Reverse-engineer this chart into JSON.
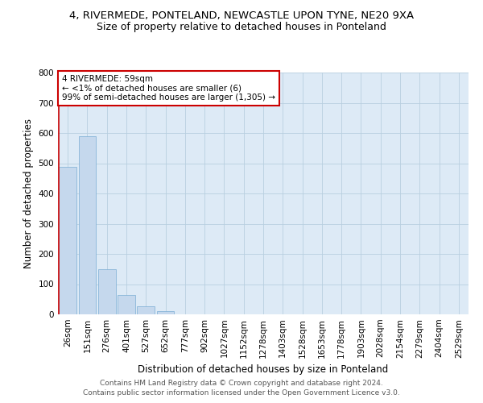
{
  "title": "4, RIVERMEDE, PONTELAND, NEWCASTLE UPON TYNE, NE20 9XA",
  "subtitle": "Size of property relative to detached houses in Ponteland",
  "xlabel": "Distribution of detached houses by size in Ponteland",
  "ylabel": "Number of detached properties",
  "bar_color": "#c5d8ed",
  "bar_edge_color": "#7aadd4",
  "annotation_box_text": "4 RIVERMEDE: 59sqm\n← <1% of detached houses are smaller (6)\n99% of semi-detached houses are larger (1,305) →",
  "annotation_box_color": "#ffffff",
  "annotation_box_edge_color": "#cc0000",
  "vline_color": "#cc0000",
  "categories": [
    "26sqm",
    "151sqm",
    "276sqm",
    "401sqm",
    "527sqm",
    "652sqm",
    "777sqm",
    "902sqm",
    "1027sqm",
    "1152sqm",
    "1278sqm",
    "1403sqm",
    "1528sqm",
    "1653sqm",
    "1778sqm",
    "1903sqm",
    "2028sqm",
    "2154sqm",
    "2279sqm",
    "2404sqm",
    "2529sqm"
  ],
  "values": [
    487,
    590,
    150,
    63,
    28,
    10,
    0,
    0,
    0,
    0,
    0,
    0,
    0,
    0,
    0,
    0,
    0,
    0,
    0,
    0,
    0
  ],
  "ylim": [
    0,
    800
  ],
  "yticks": [
    0,
    100,
    200,
    300,
    400,
    500,
    600,
    700,
    800
  ],
  "footer_line1": "Contains HM Land Registry data © Crown copyright and database right 2024.",
  "footer_line2": "Contains public sector information licensed under the Open Government Licence v3.0.",
  "background_color": "#ffffff",
  "plot_bg_color": "#ddeaf6",
  "grid_color": "#b8cfe0",
  "title_fontsize": 9.5,
  "subtitle_fontsize": 9,
  "axis_label_fontsize": 8.5,
  "tick_fontsize": 7.5,
  "footer_fontsize": 6.5,
  "annotation_fontsize": 7.5
}
